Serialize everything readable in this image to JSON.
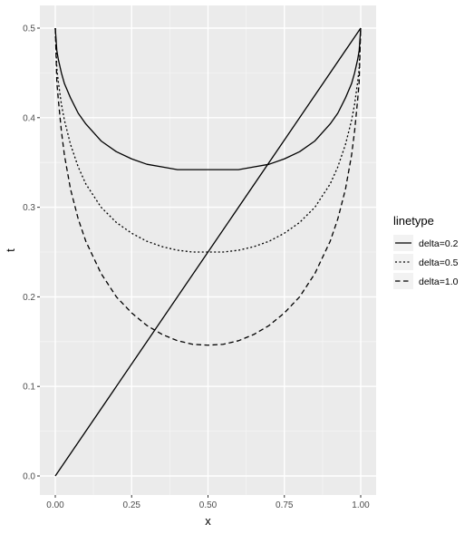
{
  "chart_data": {
    "type": "line",
    "xlabel": "x",
    "ylabel": "t",
    "xlim": [
      0,
      1
    ],
    "ylim": [
      0,
      0.5
    ],
    "x_ticks": [
      "0.00",
      "0.25",
      "0.50",
      "0.75",
      "1.00"
    ],
    "x_tick_values": [
      0,
      0.25,
      0.5,
      0.75,
      1
    ],
    "y_ticks": [
      "0.0",
      "0.1",
      "0.2",
      "0.3",
      "0.4",
      "0.5"
    ],
    "y_tick_values": [
      0,
      0.1,
      0.2,
      0.3,
      0.4,
      0.5
    ],
    "grid": true,
    "legend": {
      "title": "linetype",
      "position": "right",
      "entries": [
        {
          "label": "delta=0.2",
          "dash": "solid"
        },
        {
          "label": "delta=0.5",
          "dash": "dotted"
        },
        {
          "label": "delta=1.0",
          "dash": "dashed"
        }
      ]
    },
    "series": [
      {
        "name": "delta=0.2",
        "dash": "solid",
        "x": [
          0,
          0.005,
          0.01,
          0.02,
          0.03,
          0.05,
          0.075,
          0.1,
          0.15,
          0.2,
          0.25,
          0.3,
          0.35,
          0.4,
          0.45,
          0.5,
          0.55,
          0.6,
          0.65,
          0.7,
          0.75,
          0.8,
          0.85,
          0.9,
          0.925,
          0.95,
          0.97,
          0.98,
          0.99,
          0.995,
          1
        ],
        "y": [
          0.5,
          0.475,
          0.465,
          0.45,
          0.438,
          0.422,
          0.405,
          0.393,
          0.374,
          0.362,
          0.354,
          0.348,
          0.345,
          0.342,
          0.342,
          0.342,
          0.342,
          0.342,
          0.345,
          0.348,
          0.354,
          0.362,
          0.374,
          0.393,
          0.405,
          0.422,
          0.438,
          0.45,
          0.465,
          0.475,
          0.5
        ]
      },
      {
        "name": "delta=0.5",
        "dash": "dotted",
        "x": [
          0,
          0.005,
          0.01,
          0.02,
          0.03,
          0.05,
          0.075,
          0.1,
          0.15,
          0.2,
          0.25,
          0.3,
          0.35,
          0.4,
          0.45,
          0.5,
          0.55,
          0.6,
          0.65,
          0.7,
          0.75,
          0.8,
          0.85,
          0.9,
          0.925,
          0.95,
          0.97,
          0.98,
          0.99,
          0.995,
          1
        ],
        "y": [
          0.5,
          0.455,
          0.44,
          0.415,
          0.397,
          0.37,
          0.345,
          0.326,
          0.3,
          0.283,
          0.271,
          0.262,
          0.256,
          0.252,
          0.25,
          0.25,
          0.25,
          0.252,
          0.256,
          0.262,
          0.271,
          0.283,
          0.3,
          0.326,
          0.345,
          0.37,
          0.397,
          0.415,
          0.44,
          0.455,
          0.5
        ]
      },
      {
        "name": "delta=1.0",
        "dash": "dashed",
        "x": [
          0,
          0.005,
          0.01,
          0.02,
          0.03,
          0.05,
          0.075,
          0.1,
          0.15,
          0.2,
          0.25,
          0.3,
          0.35,
          0.4,
          0.45,
          0.5,
          0.55,
          0.6,
          0.65,
          0.7,
          0.75,
          0.8,
          0.85,
          0.9,
          0.925,
          0.95,
          0.97,
          0.98,
          0.99,
          0.995,
          1
        ],
        "y": [
          0.5,
          0.44,
          0.42,
          0.385,
          0.358,
          0.32,
          0.287,
          0.262,
          0.226,
          0.2,
          0.182,
          0.168,
          0.158,
          0.151,
          0.147,
          0.146,
          0.147,
          0.151,
          0.158,
          0.168,
          0.182,
          0.2,
          0.226,
          0.262,
          0.287,
          0.32,
          0.358,
          0.385,
          0.42,
          0.44,
          0.5
        ]
      },
      {
        "name": "",
        "dash": "solid",
        "x": [
          0,
          1
        ],
        "y": [
          0,
          0.5
        ]
      }
    ]
  }
}
